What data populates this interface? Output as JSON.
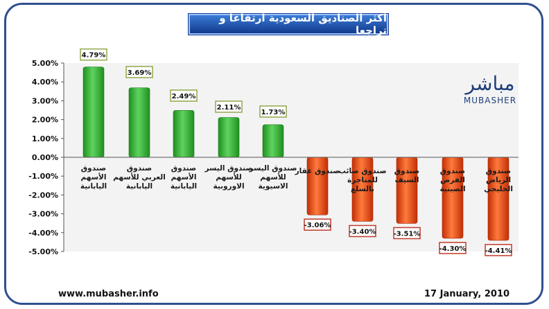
{
  "title": "اكثر الصناديق السعودية ارتفاعا و تراجعا",
  "logo": {
    "arabic": "مباشر",
    "english": "MUBASHER"
  },
  "footer": {
    "url": "www.mubasher.info",
    "date": "17 January, 2010"
  },
  "colors": {
    "positive": "#2eb62e",
    "negative": "#e8440f",
    "frame": "#2f4f8f",
    "title_bg": "#1f5bb5"
  },
  "chart_data": {
    "type": "bar",
    "title": "اكثر الصناديق السعودية ارتفاعا و تراجعا",
    "xlabel": "",
    "ylabel": "",
    "ylim": [
      -5.0,
      5.0
    ],
    "y_ticks": [
      "5.00%",
      "4.00%",
      "3.00%",
      "2.00%",
      "1.00%",
      "0.00%",
      "-1.00%",
      "-2.00%",
      "-3.00%",
      "-4.00%",
      "-5.00%"
    ],
    "y_tick_values": [
      5,
      4,
      3,
      2,
      1,
      0,
      -1,
      -2,
      -3,
      -4,
      -5
    ],
    "grid": false,
    "legend": "none",
    "categories": [
      [
        "صندوق",
        "الأسهم",
        "اليابانية"
      ],
      [
        "صندوق",
        "العربي للأسهم",
        "اليابانية"
      ],
      [
        "صندوق",
        "الأسهم",
        "اليابانية"
      ],
      [
        "صندوق اليسر",
        "للأسهم",
        "الاوروبية"
      ],
      [
        "صندوق اليسر",
        "للأسهم",
        "الاسيوية"
      ],
      [
        "صندوق عقار"
      ],
      [
        "صندوق صائب",
        "للمتاجرة",
        "بالسلع"
      ],
      [
        "صندوق",
        "السيف"
      ],
      [
        "صندوق",
        "الفرص",
        "الصينية"
      ],
      [
        "صندوق",
        "الرياض",
        "الخليجي"
      ]
    ],
    "values": [
      4.79,
      3.69,
      2.49,
      2.11,
      1.73,
      -3.06,
      -3.4,
      -3.51,
      -4.3,
      -4.41
    ],
    "value_labels": [
      "4.79%",
      "3.69%",
      "2.49%",
      "2.11%",
      "1.73%",
      "-3.06%",
      "-3.40%",
      "-3.51%",
      "-4.30%",
      "-4.41%"
    ]
  }
}
